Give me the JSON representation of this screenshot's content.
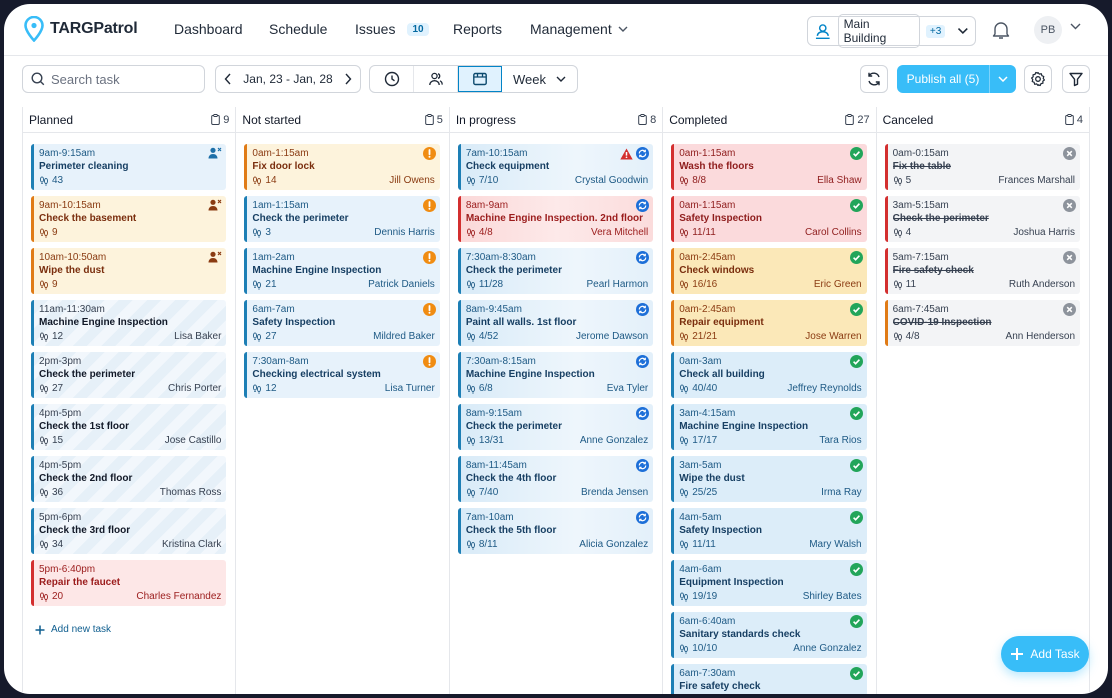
{
  "app": {
    "name": "TARGPatrol",
    "brand_color": "#38bdf8"
  },
  "nav": {
    "items": [
      {
        "label": "Dashboard"
      },
      {
        "label": "Schedule"
      },
      {
        "label": "Issues",
        "badge": "10"
      },
      {
        "label": "Reports"
      },
      {
        "label": "Management"
      }
    ],
    "building": {
      "name": "Main Building",
      "more": "+3"
    },
    "user_initials": "PB"
  },
  "toolbar": {
    "search_placeholder": "Search task",
    "date_range": "Jan, 23 - Jan, 28",
    "view_mode": "Week",
    "publish_label": "Publish all (5)"
  },
  "columns": [
    {
      "title": "Planned",
      "count": "9",
      "add_label": "Add new task",
      "cards": [
        {
          "time": "9am-9:15am",
          "title": "Perimeter cleaning",
          "steps": "43",
          "assignee": "",
          "theme": "t-blue",
          "icon": "unassigned"
        },
        {
          "time": "9am-10:15am",
          "title": "Check the basement",
          "steps": "9",
          "assignee": "",
          "theme": "t-yellow",
          "icon": "unassigned"
        },
        {
          "time": "10am-10:50am",
          "title": "Wipe the dust",
          "steps": "9",
          "assignee": "",
          "theme": "t-yellow",
          "icon": "unassigned"
        },
        {
          "time": "11am-11:30am",
          "title": "Machine Engine Inspection",
          "steps": "12",
          "assignee": "Lisa Baker",
          "theme": "t-blue-stripe",
          "icon": ""
        },
        {
          "time": "2pm-3pm",
          "title": "Check the perimeter",
          "steps": "27",
          "assignee": "Chris Porter",
          "theme": "t-blue-stripe",
          "icon": ""
        },
        {
          "time": "4pm-5pm",
          "title": "Check the 1st floor",
          "steps": "15",
          "assignee": "Jose Castillo",
          "theme": "t-blue-stripe",
          "icon": ""
        },
        {
          "time": "4pm-5pm",
          "title": "Check the 2nd floor",
          "steps": "36",
          "assignee": "Thomas Ross",
          "theme": "t-blue-stripe",
          "icon": ""
        },
        {
          "time": "5pm-6pm",
          "title": "Check the 3rd floor",
          "steps": "34",
          "assignee": "Kristina Clark",
          "theme": "t-blue-stripe",
          "icon": ""
        },
        {
          "time": "5pm-6:40pm",
          "title": "Repair the faucet",
          "steps": "20",
          "assignee": "Charles Fernandez",
          "theme": "t-red",
          "icon": ""
        }
      ]
    },
    {
      "title": "Not started",
      "count": "5",
      "cards": [
        {
          "time": "0am-1:15am",
          "title": "Fix door lock",
          "steps": "14",
          "assignee": "Jill Owens",
          "theme": "t-yellow",
          "icon": "warning"
        },
        {
          "time": "1am-1:15am",
          "title": "Check the perimeter",
          "steps": "3",
          "assignee": "Dennis Harris",
          "theme": "t-blue",
          "icon": "warning"
        },
        {
          "time": "1am-2am",
          "title": "Machine Engine Inspection",
          "steps": "21",
          "assignee": "Patrick Daniels",
          "theme": "t-blue",
          "icon": "warning"
        },
        {
          "time": "6am-7am",
          "title": "Safety Inspection",
          "steps": "27",
          "assignee": "Mildred Baker",
          "theme": "t-blue",
          "icon": "warning"
        },
        {
          "time": "7:30am-8am",
          "title": "Checking electrical system",
          "steps": "12",
          "assignee": "Lisa Turner",
          "theme": "t-blue",
          "icon": "warning"
        }
      ]
    },
    {
      "title": "In progress",
      "count": "8",
      "cards": [
        {
          "time": "7am-10:15am",
          "title": "Check equipment",
          "steps": "7/10",
          "assignee": "Crystal Goodwin",
          "theme": "t-grad-blue",
          "icon": "progress",
          "alert": true
        },
        {
          "time": "8am-9am",
          "title": "Machine Engine Inspection. 2nd floor",
          "steps": "4/8",
          "assignee": "Vera Mitchell",
          "theme": "t-grad-red",
          "icon": "progress"
        },
        {
          "time": "7:30am-8:30am",
          "title": "Check the perimeter",
          "steps": "11/28",
          "assignee": "Pearl Harmon",
          "theme": "t-grad-blue",
          "icon": "progress"
        },
        {
          "time": "8am-9:45am",
          "title": "Paint all walls. 1st floor",
          "steps": "4/52",
          "assignee": "Jerome Dawson",
          "theme": "t-grad-blue",
          "icon": "progress"
        },
        {
          "time": "7:30am-8:15am",
          "title": "Machine Engine Inspection",
          "steps": "6/8",
          "assignee": "Eva Tyler",
          "theme": "t-grad-blue",
          "icon": "progress"
        },
        {
          "time": "8am-9:15am",
          "title": "Check the perimeter",
          "steps": "13/31",
          "assignee": "Anne Gonzalez",
          "theme": "t-grad-blue",
          "icon": "progress"
        },
        {
          "time": "8am-11:45am",
          "title": "Check the 4th floor",
          "steps": "7/40",
          "assignee": "Brenda Jensen",
          "theme": "t-grad-blue",
          "icon": "progress"
        },
        {
          "time": "7am-10am",
          "title": "Check the 5th floor",
          "steps": "8/11",
          "assignee": "Alicia Gonzalez",
          "theme": "t-grad-blue",
          "icon": "progress"
        }
      ]
    },
    {
      "title": "Completed",
      "count": "27",
      "cards": [
        {
          "time": "0am-1:15am",
          "title": "Wash the floors",
          "steps": "8/8",
          "assignee": "Ella Shaw",
          "theme": "t-pink",
          "icon": "done"
        },
        {
          "time": "0am-1:15am",
          "title": "Safety Inspection",
          "steps": "11/11",
          "assignee": "Carol Collins",
          "theme": "t-pink",
          "icon": "done"
        },
        {
          "time": "0am-2:45am",
          "title": "Check windows",
          "steps": "16/16",
          "assignee": "Eric Green",
          "theme": "t-amber",
          "icon": "done"
        },
        {
          "time": "0am-2:45am",
          "title": "Repair equipment",
          "steps": "21/21",
          "assignee": "Jose Warren",
          "theme": "t-amber",
          "icon": "done"
        },
        {
          "time": "0am-3am",
          "title": "Check all building",
          "steps": "40/40",
          "assignee": "Jeffrey Reynolds",
          "theme": "t-cblue",
          "icon": "done"
        },
        {
          "time": "3am-4:15am",
          "title": "Machine Engine Inspection",
          "steps": "17/17",
          "assignee": "Tara Rios",
          "theme": "t-cblue",
          "icon": "done"
        },
        {
          "time": "3am-5am",
          "title": "Wipe the dust",
          "steps": "25/25",
          "assignee": "Irma Ray",
          "theme": "t-cblue",
          "icon": "done"
        },
        {
          "time": "4am-5am",
          "title": "Safety Inspection",
          "steps": "11/11",
          "assignee": "Mary Walsh",
          "theme": "t-cblue",
          "icon": "done"
        },
        {
          "time": "4am-6am",
          "title": "Equipment Inspection",
          "steps": "19/19",
          "assignee": "Shirley Bates",
          "theme": "t-cblue",
          "icon": "done"
        },
        {
          "time": "6am-6:40am",
          "title": "Sanitary standards check",
          "steps": "10/10",
          "assignee": "Anne Gonzalez",
          "theme": "t-cblue",
          "icon": "done"
        },
        {
          "time": "6am-7:30am",
          "title": "Fire safety check",
          "steps": "",
          "assignee": "",
          "theme": "t-cblue",
          "icon": "done"
        }
      ]
    },
    {
      "title": "Canceled",
      "count": "4",
      "cards": [
        {
          "time": "0am-0:15am",
          "title": "Fix the table",
          "steps": "5",
          "assignee": "Frances Marshall",
          "theme": "t-gray-red",
          "icon": "canceled"
        },
        {
          "time": "3am-5:15am",
          "title": "Check the perimeter",
          "steps": "4",
          "assignee": "Joshua Harris",
          "theme": "t-gray-red",
          "icon": "canceled"
        },
        {
          "time": "5am-7:15am",
          "title": "Fire safety check",
          "steps": "11",
          "assignee": "Ruth Anderson",
          "theme": "t-gray-red",
          "icon": "canceled"
        },
        {
          "time": "6am-7:45am",
          "title": "COVID-19 Inspection",
          "steps": "4/8",
          "assignee": "Ann Henderson",
          "theme": "t-gray-orange",
          "icon": "canceled"
        }
      ]
    }
  ],
  "fab": {
    "label": "Add Task"
  }
}
